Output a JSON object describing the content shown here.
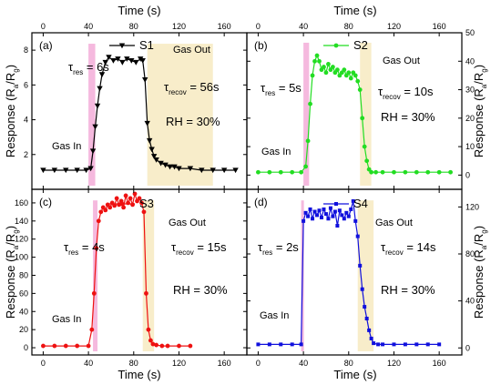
{
  "chart_data": [
    {
      "id": "a",
      "type": "line",
      "panel_label": "(a)",
      "color": "#000000",
      "marker": "triangle-down",
      "xlim": [
        -10,
        180
      ],
      "ylim": [
        0,
        9
      ],
      "yticks": [
        2,
        4,
        6,
        8
      ],
      "xticks": [
        0,
        40,
        80,
        120,
        160
      ],
      "series": [
        {
          "name": "S1",
          "x": [
            0,
            10,
            20,
            30,
            38,
            42,
            44,
            46,
            48,
            50,
            52,
            55,
            58,
            62,
            66,
            70,
            74,
            78,
            82,
            86,
            88,
            90,
            92,
            94,
            96,
            98,
            100,
            104,
            108,
            112,
            116,
            120,
            130,
            140,
            150,
            160,
            170
          ],
          "y": [
            1.1,
            1.1,
            1.1,
            1.1,
            1.1,
            1.2,
            2.2,
            3.6,
            4.8,
            5.8,
            6.6,
            7.3,
            7.6,
            7.4,
            7.5,
            7.3,
            7.5,
            7.4,
            7.3,
            7.5,
            7.4,
            6.3,
            3.8,
            2.8,
            2.3,
            1.9,
            1.7,
            1.5,
            1.4,
            1.3,
            1.3,
            1.2,
            1.2,
            1.1,
            1.1,
            1.1,
            1.1
          ]
        }
      ],
      "shade_response": [
        40,
        46
      ],
      "shade_recovery": [
        92,
        150
      ],
      "annotations": {
        "gas_in": "Gas In",
        "gas_out": "Gas Out",
        "tau_res": "6s",
        "tau_recov": "56s",
        "rh": "RH = 30%"
      }
    },
    {
      "id": "b",
      "type": "line",
      "panel_label": "(b)",
      "color": "#22dd22",
      "marker": "circle",
      "xlim": [
        -10,
        180
      ],
      "ylim": [
        -5,
        50
      ],
      "yticks": [
        0,
        10,
        20,
        30,
        40,
        50
      ],
      "xticks": [
        0,
        40,
        80,
        120,
        160
      ],
      "series": [
        {
          "name": "S2",
          "x": [
            0,
            10,
            20,
            30,
            38,
            42,
            44,
            46,
            48,
            50,
            52,
            54,
            56,
            58,
            60,
            62,
            64,
            66,
            68,
            70,
            72,
            74,
            76,
            78,
            80,
            82,
            84,
            86,
            88,
            90,
            92,
            94,
            96,
            98,
            100,
            104,
            110,
            120,
            130,
            140,
            150,
            160,
            170
          ],
          "y": [
            1,
            1,
            1,
            1,
            1,
            3,
            12,
            25,
            35,
            40,
            42,
            40,
            37,
            38,
            36,
            39,
            37,
            38,
            36,
            37,
            35,
            36,
            37,
            35,
            36,
            34,
            36,
            35,
            33,
            30,
            20,
            10,
            5,
            2,
            1,
            1,
            1,
            1,
            1,
            1,
            1,
            1,
            1
          ]
        }
      ],
      "shade_response": [
        40,
        45
      ],
      "shade_recovery": [
        90,
        100
      ],
      "annotations": {
        "gas_in": "Gas In",
        "gas_out": "Gas Out",
        "tau_res": "5s",
        "tau_recov": "10s",
        "rh": "RH = 30%"
      }
    },
    {
      "id": "c",
      "type": "line",
      "panel_label": "(c)",
      "color": "#ee1111",
      "marker": "circle",
      "xlim": [
        -10,
        180
      ],
      "ylim": [
        -8,
        175
      ],
      "yticks": [
        0,
        20,
        40,
        60,
        80,
        100,
        120,
        140,
        160
      ],
      "xticks": [
        0,
        40,
        80,
        120,
        160
      ],
      "series": [
        {
          "name": "S3",
          "x": [
            0,
            10,
            20,
            30,
            40,
            43,
            45,
            47,
            49,
            51,
            53,
            55,
            57,
            59,
            61,
            63,
            65,
            67,
            69,
            71,
            73,
            75,
            77,
            79,
            81,
            83,
            85,
            87,
            89,
            91,
            93,
            95,
            97,
            100,
            105,
            110,
            120,
            130
          ],
          "y": [
            2,
            2,
            2,
            2,
            2,
            20,
            60,
            110,
            140,
            150,
            155,
            152,
            158,
            155,
            160,
            157,
            165,
            158,
            162,
            155,
            168,
            160,
            165,
            158,
            170,
            162,
            165,
            160,
            150,
            60,
            20,
            8,
            4,
            3,
            2,
            2,
            2,
            2
          ]
        }
      ],
      "shade_response": [
        44,
        48
      ],
      "shade_recovery": [
        88,
        98
      ],
      "annotations": {
        "gas_in": "Gas In",
        "gas_out": "Gas Out",
        "tau_res": "4s",
        "tau_recov": "15s",
        "rh": "RH = 30%"
      }
    },
    {
      "id": "d",
      "type": "line",
      "panel_label": "(d)",
      "color": "#1010dd",
      "marker": "square",
      "xlim": [
        -10,
        180
      ],
      "ylim": [
        -6,
        135
      ],
      "yticks": [
        0,
        40,
        80,
        120
      ],
      "xticks": [
        0,
        40,
        80,
        120,
        160
      ],
      "series": [
        {
          "name": "S4",
          "x": [
            0,
            10,
            20,
            30,
            38,
            40,
            42,
            44,
            46,
            48,
            50,
            52,
            54,
            56,
            58,
            60,
            62,
            64,
            66,
            68,
            70,
            72,
            74,
            76,
            78,
            80,
            82,
            84,
            86,
            88,
            90,
            92,
            94,
            96,
            98,
            100,
            102,
            106,
            110,
            120,
            130,
            140,
            150,
            160
          ],
          "y": [
            3,
            3,
            3,
            3,
            3,
            108,
            115,
            112,
            118,
            110,
            116,
            113,
            117,
            111,
            118,
            114,
            110,
            119,
            112,
            116,
            104,
            117,
            113,
            110,
            115,
            112,
            118,
            125,
            108,
            95,
            70,
            50,
            35,
            25,
            15,
            8,
            4,
            3,
            3,
            3,
            3,
            3,
            3,
            3
          ]
        }
      ],
      "shade_response": [
        38,
        40
      ],
      "shade_recovery": [
        88,
        102
      ],
      "annotations": {
        "gas_in": "Gas In",
        "gas_out": "Gas Out",
        "tau_res": "2s",
        "tau_recov": "14s",
        "rh": "RH = 30%"
      }
    }
  ],
  "axes": {
    "x_label": "Time (s)",
    "y_label_left": "Response (R",
    "y_label_right": "Response (R",
    "y_label_sub_a": "a",
    "y_label_slash": "/R",
    "y_label_sub_g": "g",
    "y_label_close": ")"
  },
  "symbols": {
    "tau": "τ",
    "res_sub": "res",
    "recov_sub": "recov",
    "eq": " = "
  }
}
